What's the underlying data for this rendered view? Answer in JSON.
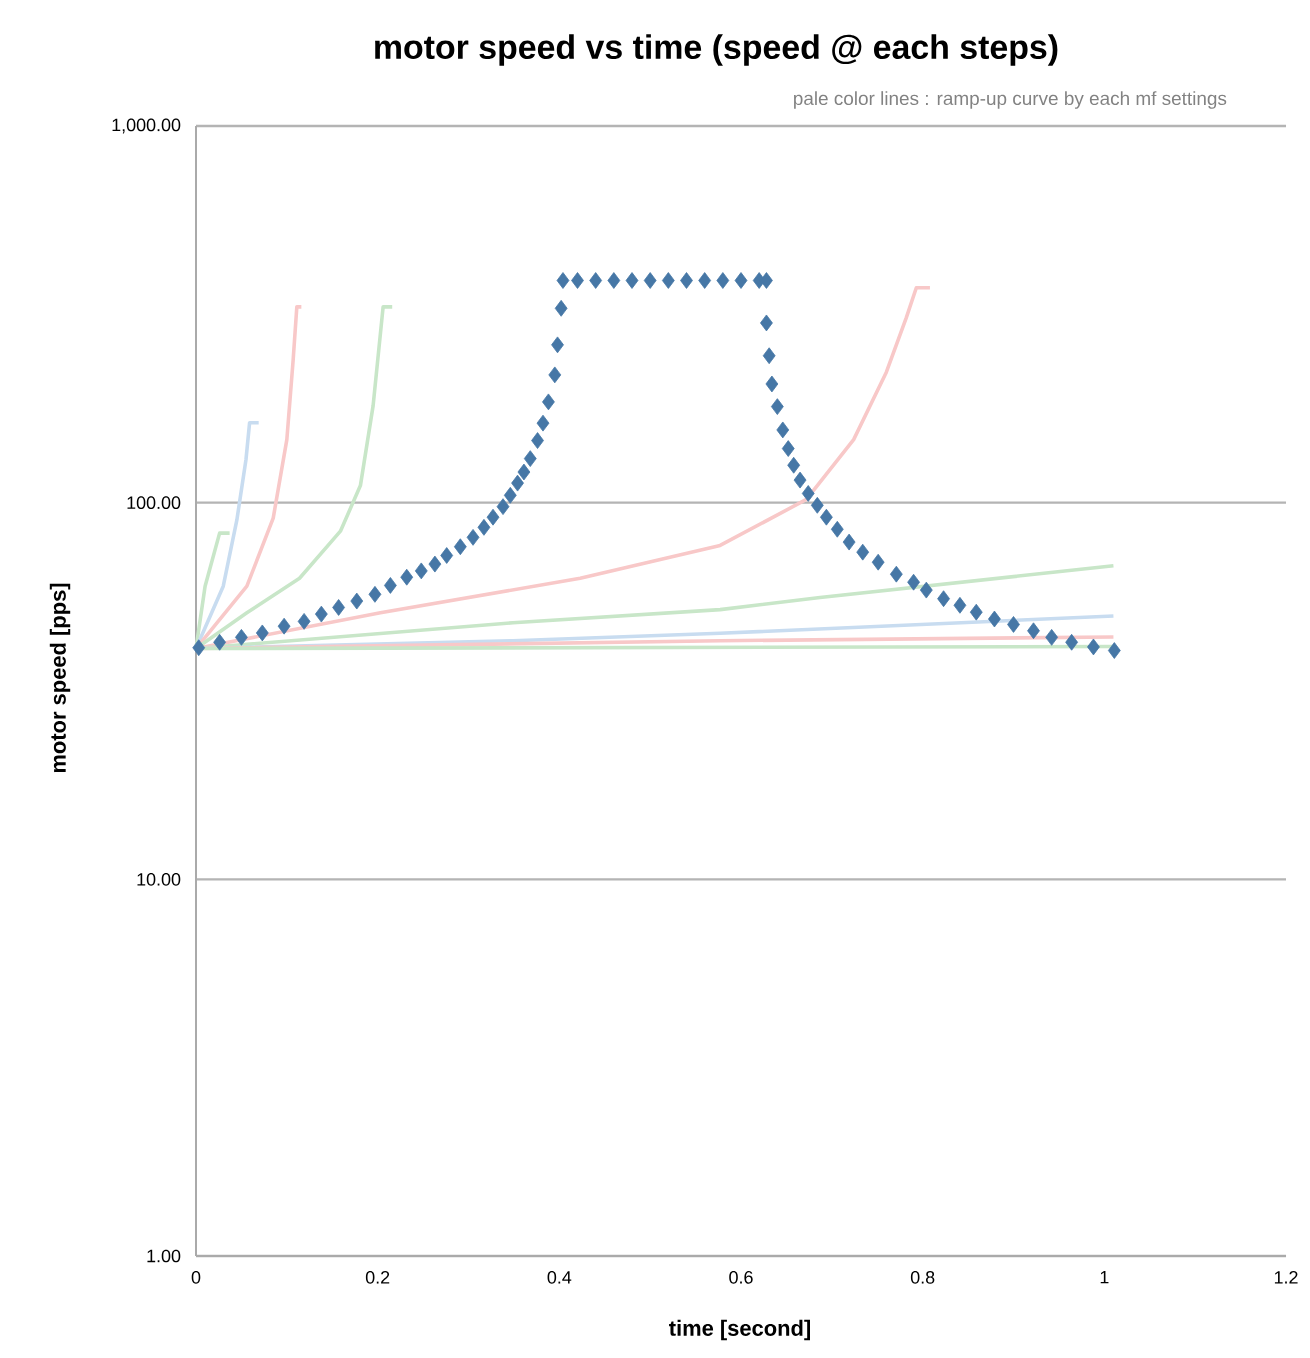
{
  "chart_data": {
    "type": "scatter",
    "title": "motor speed vs time (speed @ each steps)",
    "subtitle": "pale color lines : ramp-up curve by each mf settings",
    "xlabel": "time [second]",
    "ylabel": "motor speed [pps]",
    "log": "y",
    "grid": "y",
    "xlim": [
      0,
      1.2
    ],
    "xticks": [
      0,
      0.2,
      0.4,
      0.6,
      0.8,
      1,
      1.2
    ],
    "ylim": [
      1,
      1000
    ],
    "yticks": [
      {
        "value": 1,
        "label": "1.00"
      },
      {
        "value": 10,
        "label": "10.00"
      },
      {
        "value": 100,
        "label": "100.00"
      },
      {
        "value": 1000,
        "label": "1,000.00"
      }
    ],
    "series": [
      {
        "type": "line",
        "marker": "none",
        "color": "#c8e6c8",
        "x": [
          0,
          0.01,
          0.026,
          0.037
        ],
        "values": [
          41,
          60,
          83,
          83
        ]
      },
      {
        "type": "line",
        "marker": "none",
        "color": "#c8dcf0",
        "x": [
          0,
          0.03,
          0.045,
          0.055,
          0.059,
          0.069
        ],
        "values": [
          41,
          60,
          90,
          130,
          163,
          163
        ]
      },
      {
        "type": "line",
        "marker": "none",
        "color": "#f8c8c8",
        "x": [
          0,
          0.056,
          0.085,
          0.1,
          0.107,
          0.111,
          0.116
        ],
        "values": [
          41,
          60,
          91,
          147,
          240,
          331,
          331
        ]
      },
      {
        "type": "line",
        "marker": "none",
        "color": "#c8e6c8",
        "x": [
          0,
          0.056,
          0.114,
          0.159,
          0.181,
          0.195,
          0.206,
          0.216
        ],
        "values": [
          41,
          51,
          63,
          84,
          111,
          181,
          331,
          331
        ]
      },
      {
        "type": "line",
        "marker": "none",
        "color": "#f8c8c8",
        "x": [
          0,
          0.203,
          0.423,
          0.577,
          0.672,
          0.724,
          0.76,
          0.782,
          0.793,
          0.808
        ],
        "values": [
          41,
          51,
          63,
          77,
          102,
          147,
          222,
          310,
          372,
          372
        ]
      },
      {
        "type": "line",
        "marker": "none",
        "color": "#c8e6c8",
        "x": [
          0,
          0.349,
          0.577,
          0.687,
          1.01
        ],
        "values": [
          41,
          48,
          52,
          56,
          68
        ]
      },
      {
        "type": "line",
        "marker": "none",
        "color": "#c8dcf0",
        "x": [
          0,
          0.349,
          0.577,
          1.01
        ],
        "values": [
          41,
          43,
          45,
          50
        ]
      },
      {
        "type": "line",
        "marker": "none",
        "color": "#f8c8c8",
        "x": [
          0,
          0.577,
          1.01
        ],
        "values": [
          41,
          43,
          44
        ]
      },
      {
        "type": "line",
        "marker": "none",
        "color": "#c8e6c8",
        "x": [
          0,
          1.01
        ],
        "values": [
          41,
          41.5
        ]
      },
      {
        "marker": "diamond",
        "color": "#4677a6",
        "x": [
          0.003,
          0.026,
          0.05,
          0.073,
          0.097,
          0.119,
          0.138,
          0.157,
          0.177,
          0.197,
          0.214,
          0.232,
          0.248,
          0.263,
          0.276,
          0.291,
          0.305,
          0.317,
          0.327,
          0.338,
          0.346,
          0.354,
          0.361,
          0.368,
          0.376,
          0.382,
          0.388,
          0.395,
          0.398,
          0.402,
          0.404,
          0.42,
          0.44,
          0.46,
          0.48,
          0.5,
          0.52,
          0.54,
          0.56,
          0.58,
          0.6,
          0.62,
          0.628,
          0.628,
          0.631,
          0.634,
          0.64,
          0.646,
          0.652,
          0.658,
          0.665,
          0.674,
          0.684,
          0.694,
          0.706,
          0.719,
          0.734,
          0.751,
          0.771,
          0.79,
          0.804,
          0.823,
          0.841,
          0.859,
          0.879,
          0.9,
          0.922,
          0.942,
          0.964,
          0.988,
          1.011
        ],
        "values": [
          41.2,
          42.6,
          43.9,
          45.1,
          47,
          48.4,
          50.6,
          52.7,
          54.8,
          57.1,
          60.3,
          63.4,
          65.9,
          68.7,
          72.4,
          76.4,
          80.9,
          86,
          91.5,
          97.6,
          104.6,
          112.7,
          120.6,
          130.9,
          146.2,
          162.6,
          185.2,
          218.4,
          262.4,
          328.1,
          389,
          389,
          389,
          389,
          389,
          389,
          389,
          389,
          389,
          389,
          389,
          389,
          389,
          300,
          245.5,
          206.6,
          179.9,
          156,
          139.2,
          125.7,
          114.8,
          105.8,
          98.4,
          91.5,
          85,
          78.6,
          73.9,
          69.5,
          64.6,
          61.5,
          58.6,
          55.6,
          53.4,
          51.2,
          49.1,
          47.5,
          45.7,
          43.9,
          42.6,
          41.4,
          40.5
        ]
      }
    ]
  }
}
